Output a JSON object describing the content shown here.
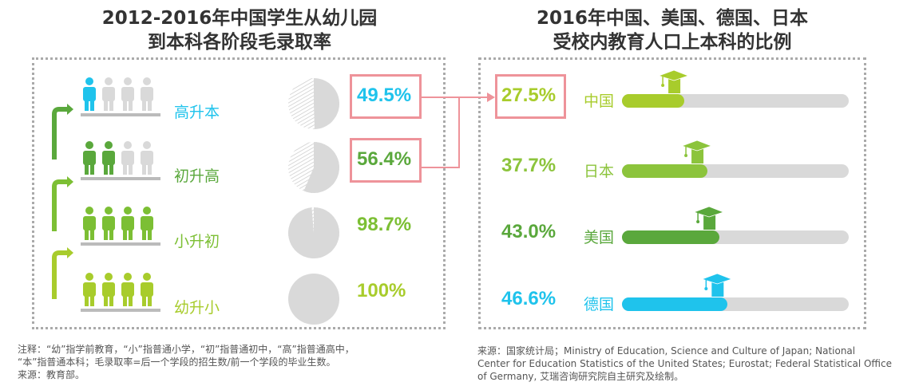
{
  "left": {
    "title_line1": "2012-2016年中国学生从幼儿园",
    "title_line2": "到本科各阶段毛录取率",
    "rows": [
      {
        "label": "高升本",
        "value": "49.5%",
        "ratio": 0.495,
        "color": "#1fc3ec",
        "filled": 1,
        "highlighted": true
      },
      {
        "label": "初升高",
        "value": "56.4%",
        "ratio": 0.564,
        "color": "#5aa83c",
        "filled": 2,
        "highlighted": true
      },
      {
        "label": "小升初",
        "value": "98.7%",
        "ratio": 0.987,
        "color": "#7cbf34",
        "filled": 4,
        "highlighted": false
      },
      {
        "label": "幼升小",
        "value": "100%",
        "ratio": 1.0,
        "color": "#a8cc2c",
        "filled": 4,
        "highlighted": false
      }
    ]
  },
  "right": {
    "title_line1": "2016年中国、美国、德国、日本",
    "title_line2": "受校内教育人口上本科的比例",
    "rows": [
      {
        "country": "中国",
        "value": "27.5%",
        "ratio": 0.275,
        "color": "#a8cc2c",
        "highlighted": true
      },
      {
        "country": "日本",
        "value": "37.7%",
        "ratio": 0.377,
        "color": "#8cc43c",
        "highlighted": false
      },
      {
        "country": "美国",
        "value": "43.0%",
        "ratio": 0.43,
        "color": "#5aa83c",
        "highlighted": false
      },
      {
        "country": "德国",
        "value": "46.6%",
        "ratio": 0.466,
        "color": "#1fc3ec",
        "highlighted": false
      }
    ]
  },
  "notes": {
    "left_line1": "注释：“幼”指学前教育，“小”指普通小学，“初”指普通初中，“高”指普通高中，",
    "left_line2": "“本”指普通本科；毛录取率=后一个学段的招生数/前一个学段的毕业生数。",
    "left_line3": "来源：教育部。",
    "right_line1": "来源：国家统计局；Ministry of Education, Science and Culture of Japan; National",
    "right_line2": "Center for Education Statistics of the United States; Eurostat; Federal Statistical Office",
    "right_line3": "of Germany, 艾瑞咨询研究院自主研究及绘制。"
  },
  "colors": {
    "highlight": "#ee939a",
    "empty": "#d9d9d9",
    "base": "#bbbbbb"
  }
}
